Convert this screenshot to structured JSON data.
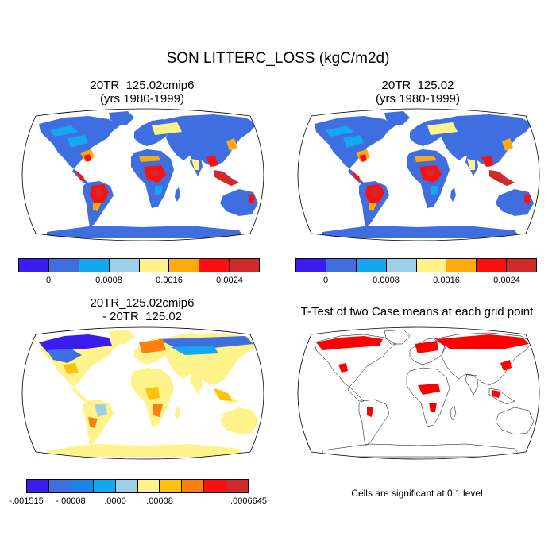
{
  "title": "SON LITTERC_LOSS (kgC/m2d)",
  "panels": [
    {
      "title": "20TR_125.02cmip6\n(yrs 1980-1999)"
    },
    {
      "title": "20TR_125.02\n(yrs 1980-1999)"
    },
    {
      "title": "20TR_125.02cmip6\n- 20TR_125.02"
    },
    {
      "title": "T-Test of two Case means at each grid point"
    }
  ],
  "colorbar_top": {
    "colors": [
      "#3b1cf0",
      "#3e6ee0",
      "#13a8f0",
      "#9dcfe8",
      "#fef28a",
      "#fdaa0f",
      "#fd0f0f",
      "#d12a2a"
    ],
    "labels": [
      "0",
      "0.0008",
      "0.0016",
      "0.0024"
    ]
  },
  "colorbar_diff": {
    "colors": [
      "#3b1cf0",
      "#3e6ee0",
      "#1a83e5",
      "#13a8f0",
      "#9dcfe8",
      "#fef28a",
      "#fdc20f",
      "#fd7f0f",
      "#fd0f0f",
      "#d12a2a"
    ],
    "labels": [
      "-.001515",
      "-.00008",
      ".0000",
      ".00008",
      ".0006645"
    ]
  },
  "ttest_note": "Cells are significant at 0.1 level",
  "colors": {
    "ocean": "#ffffff",
    "land_low": "#3e6ee0",
    "land_mid": "#13a8f0",
    "land_yellow": "#fef28a",
    "land_red": "#fd0f0f",
    "land_darkred": "#d12a2a",
    "signif": "#ff0000"
  }
}
